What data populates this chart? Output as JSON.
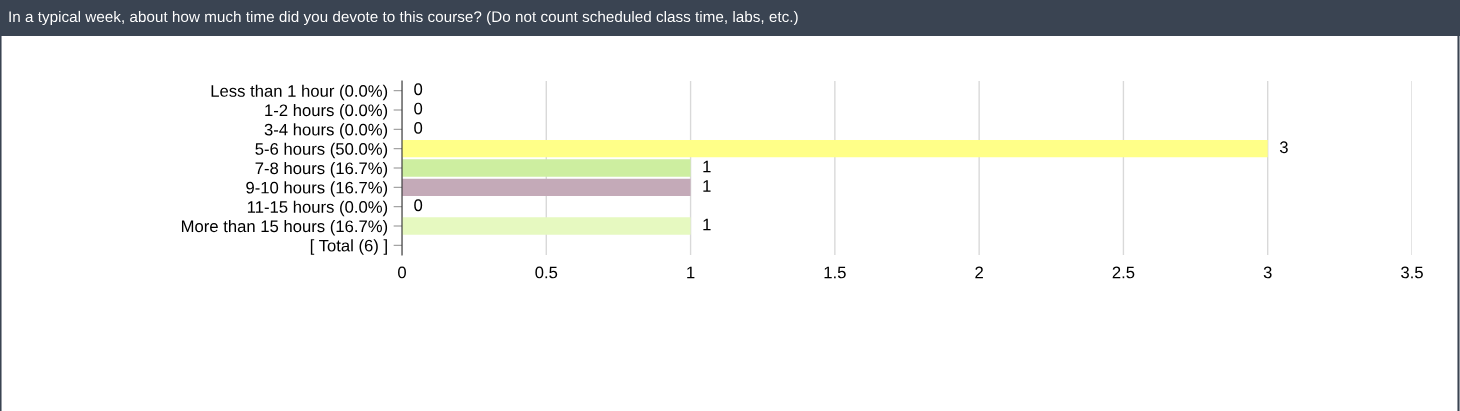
{
  "chart_data": {
    "type": "bar",
    "orientation": "horizontal",
    "title": "In a typical week, about how much time did you devote to this course? (Do not count scheduled class time, labs, etc.)",
    "categories": [
      "Less than 1 hour (0.0%)",
      "1-2 hours (0.0%)",
      "3-4 hours (0.0%)",
      "5-6 hours (50.0%)",
      "7-8 hours (16.7%)",
      "9-10 hours (16.7%)",
      "11-15 hours (0.0%)",
      "More than 15 hours (16.7%)",
      "[ Total (6) ]"
    ],
    "values": [
      0,
      0,
      0,
      3,
      1,
      1,
      0,
      1,
      null
    ],
    "colors": [
      "#ffff88",
      "#cdeea0",
      "#c4aab8",
      "#ffff88",
      "#cdeea0",
      "#c4aab8",
      "#e6f9c0",
      "#e6f9c0",
      null
    ],
    "xlim": [
      0,
      3.5
    ],
    "xticks": [
      0,
      0.5,
      1,
      1.5,
      2,
      2.5,
      3,
      3.5
    ],
    "grid": "x",
    "data_labels": true,
    "legend": false
  }
}
